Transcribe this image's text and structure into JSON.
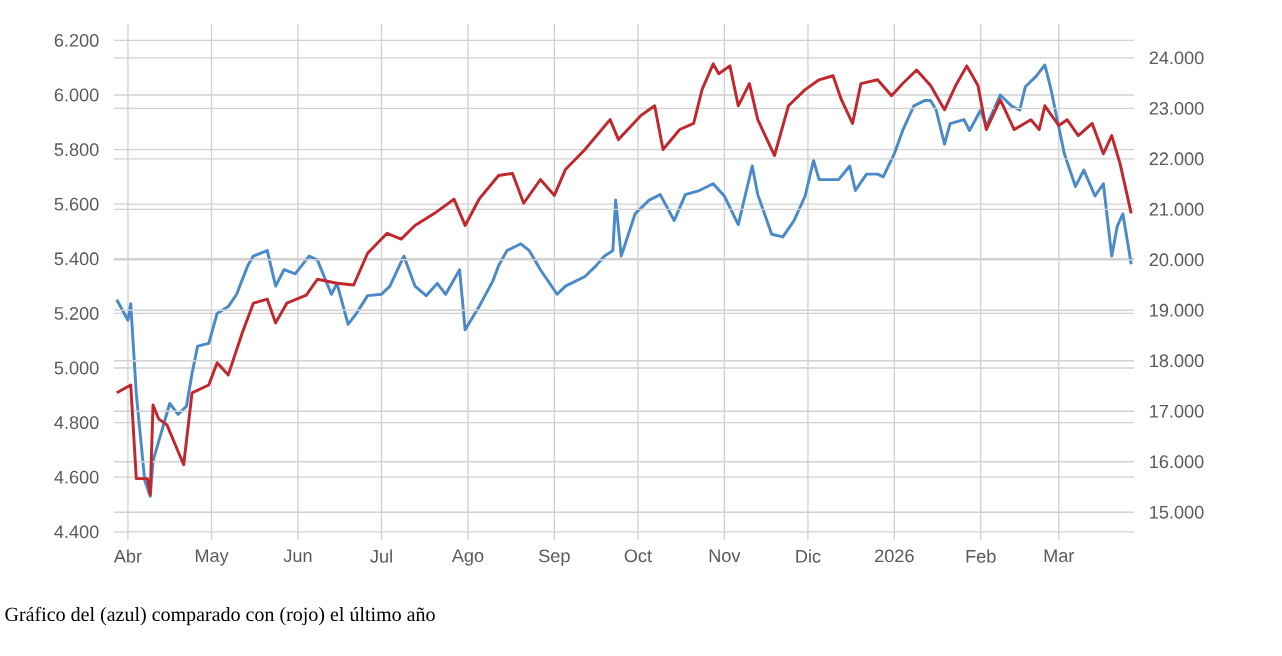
{
  "chart_data": {
    "type": "line",
    "xlim": [
      "2025-03-27",
      "2026-03-28"
    ],
    "xticks": [
      {
        "value": "2025-04-01",
        "label": "Abr"
      },
      {
        "value": "2025-05-01",
        "label": "May"
      },
      {
        "value": "2025-06-01",
        "label": "Jun"
      },
      {
        "value": "2025-07-01",
        "label": "Jul"
      },
      {
        "value": "2025-08-01",
        "label": "Ago"
      },
      {
        "value": "2025-09-01",
        "label": "Sep"
      },
      {
        "value": "2025-10-01",
        "label": "Oct"
      },
      {
        "value": "2025-11-01",
        "label": "Nov"
      },
      {
        "value": "2025-12-01",
        "label": "Dic"
      },
      {
        "value": "2026-01-01",
        "label": "2026"
      },
      {
        "value": "2026-02-01",
        "label": "Feb"
      },
      {
        "value": "2026-03-01",
        "label": "Mar"
      }
    ],
    "ylim": [
      4370,
      6260
    ],
    "yticks": [
      {
        "value": 4400,
        "label": "4.400"
      },
      {
        "value": 4600,
        "label": "4.600"
      },
      {
        "value": 4800,
        "label": "4.800"
      },
      {
        "value": 5000,
        "label": "5.000"
      },
      {
        "value": 5200,
        "label": "5.200"
      },
      {
        "value": 5400,
        "label": "5.400"
      },
      {
        "value": 5600,
        "label": "5.600"
      },
      {
        "value": 5800,
        "label": "5.800"
      },
      {
        "value": 6000,
        "label": "6.000"
      },
      {
        "value": 6200,
        "label": "6.200"
      }
    ],
    "y2lim": [
      14450,
      24670
    ],
    "y2ticks": [
      {
        "value": 15000,
        "label": "15.000"
      },
      {
        "value": 16000,
        "label": "16.000"
      },
      {
        "value": 17000,
        "label": "17.000"
      },
      {
        "value": 18000,
        "label": "18.000"
      },
      {
        "value": 19000,
        "label": "19.000"
      },
      {
        "value": 20000,
        "label": "20.000"
      },
      {
        "value": 21000,
        "label": "21.000"
      },
      {
        "value": 22000,
        "label": "22.000"
      },
      {
        "value": 23000,
        "label": "23.000"
      },
      {
        "value": 24000,
        "label": "24.000"
      }
    ],
    "grid": true,
    "series": [
      {
        "color": "#4a8ac8",
        "x": [
          "2025-03-28",
          "2025-04-01",
          "2025-04-02",
          "2025-04-04",
          "2025-04-07",
          "2025-04-09",
          "2025-04-10",
          "2025-04-16",
          "2025-04-19",
          "2025-04-22",
          "2025-04-24",
          "2025-04-26",
          "2025-04-30",
          "2025-05-03",
          "2025-05-07",
          "2025-05-10",
          "2025-05-14",
          "2025-05-16",
          "2025-05-21",
          "2025-05-24",
          "2025-05-27",
          "2025-05-31",
          "2025-06-05",
          "2025-06-08",
          "2025-06-13",
          "2025-06-15",
          "2025-06-19",
          "2025-06-22",
          "2025-06-26",
          "2025-07-01",
          "2025-07-04",
          "2025-07-09",
          "2025-07-13",
          "2025-07-17",
          "2025-07-21",
          "2025-07-24",
          "2025-07-29",
          "2025-07-31",
          "2025-08-05",
          "2025-08-10",
          "2025-08-12",
          "2025-08-15",
          "2025-08-20",
          "2025-08-23",
          "2025-08-27",
          "2025-09-02",
          "2025-09-05",
          "2025-09-12",
          "2025-09-16",
          "2025-09-19",
          "2025-09-22",
          "2025-09-23",
          "2025-09-25",
          "2025-09-30",
          "2025-10-05",
          "2025-10-09",
          "2025-10-14",
          "2025-10-18",
          "2025-10-23",
          "2025-10-28",
          "2025-11-01",
          "2025-11-06",
          "2025-11-11",
          "2025-11-13",
          "2025-11-18",
          "2025-11-22",
          "2025-11-26",
          "2025-11-30",
          "2025-12-03",
          "2025-12-05",
          "2025-12-12",
          "2025-12-16",
          "2025-12-18",
          "2025-12-22",
          "2025-12-26",
          "2025-12-28",
          "2026-01-01",
          "2026-01-04",
          "2026-01-08",
          "2026-01-12",
          "2026-01-14",
          "2026-01-16",
          "2026-01-19",
          "2026-01-21",
          "2026-01-26",
          "2026-01-28",
          "2026-02-01",
          "2026-02-03",
          "2026-02-08",
          "2026-02-12",
          "2026-02-15",
          "2026-02-17",
          "2026-02-21",
          "2026-02-24",
          "2026-02-26",
          "2026-03-03",
          "2026-03-07",
          "2026-03-10",
          "2026-03-14",
          "2026-03-17",
          "2026-03-20",
          "2026-03-22",
          "2026-03-24",
          "2026-03-27"
        ],
        "values": [
          5250,
          5175,
          5235,
          4905,
          4590,
          4530,
          4660,
          4870,
          4830,
          4860,
          4980,
          5080,
          5090,
          5200,
          5225,
          5270,
          5375,
          5410,
          5430,
          5300,
          5360,
          5345,
          5410,
          5395,
          5270,
          5310,
          5160,
          5200,
          5265,
          5270,
          5300,
          5410,
          5300,
          5265,
          5310,
          5270,
          5360,
          5140,
          5225,
          5320,
          5375,
          5430,
          5455,
          5430,
          5360,
          5270,
          5300,
          5335,
          5375,
          5410,
          5430,
          5615,
          5410,
          5565,
          5615,
          5635,
          5540,
          5635,
          5650,
          5675,
          5630,
          5525,
          5740,
          5635,
          5490,
          5480,
          5540,
          5630,
          5760,
          5690,
          5690,
          5740,
          5650,
          5710,
          5710,
          5700,
          5785,
          5870,
          5960,
          5980,
          5980,
          5945,
          5820,
          5895,
          5910,
          5870,
          5945,
          5885,
          6000,
          5960,
          5945,
          6030,
          6070,
          6110,
          6030,
          5785,
          5665,
          5725,
          5630,
          5675,
          5410,
          5520,
          5565,
          5380
        ]
      },
      {
        "color": "#c0282d",
        "axis": "y2",
        "x": [
          "2025-03-28",
          "2025-04-02",
          "2025-04-04",
          "2025-04-08",
          "2025-04-09",
          "2025-04-10",
          "2025-04-12",
          "2025-04-15",
          "2025-04-21",
          "2025-04-24",
          "2025-04-30",
          "2025-05-03",
          "2025-05-07",
          "2025-05-12",
          "2025-05-16",
          "2025-05-21",
          "2025-05-24",
          "2025-05-28",
          "2025-06-04",
          "2025-06-08",
          "2025-06-15",
          "2025-06-21",
          "2025-06-26",
          "2025-07-03",
          "2025-07-08",
          "2025-07-13",
          "2025-07-20",
          "2025-07-27",
          "2025-07-31",
          "2025-08-05",
          "2025-08-12",
          "2025-08-17",
          "2025-08-21",
          "2025-08-27",
          "2025-09-01",
          "2025-09-05",
          "2025-09-12",
          "2025-09-21",
          "2025-09-24",
          "2025-10-02",
          "2025-10-07",
          "2025-10-10",
          "2025-10-16",
          "2025-10-21",
          "2025-10-24",
          "2025-10-28",
          "2025-10-30",
          "2025-11-03",
          "2025-11-06",
          "2025-11-10",
          "2025-11-13",
          "2025-11-19",
          "2025-11-24",
          "2025-11-30",
          "2025-12-05",
          "2025-12-10",
          "2025-12-13",
          "2025-12-17",
          "2025-12-20",
          "2025-12-26",
          "2025-12-31",
          "2026-01-04",
          "2026-01-09",
          "2026-01-14",
          "2026-01-19",
          "2026-01-23",
          "2026-01-27",
          "2026-01-31",
          "2026-02-03",
          "2026-02-08",
          "2026-02-13",
          "2026-02-19",
          "2026-02-22",
          "2026-02-24",
          "2026-03-01",
          "2026-03-04",
          "2026-03-08",
          "2026-03-13",
          "2026-03-17",
          "2026-03-20",
          "2026-03-23",
          "2026-03-27"
        ],
        "values": [
          17365,
          17520,
          15665,
          15665,
          15350,
          17125,
          16850,
          16730,
          15940,
          17365,
          17520,
          17960,
          17720,
          18550,
          19140,
          19220,
          18750,
          19140,
          19300,
          19615,
          19535,
          19500,
          20130,
          20525,
          20410,
          20680,
          20920,
          21200,
          20680,
          21200,
          21670,
          21710,
          21120,
          21590,
          21275,
          21790,
          22185,
          22775,
          22380,
          22855,
          23050,
          22185,
          22580,
          22700,
          23370,
          23880,
          23685,
          23840,
          23050,
          23490,
          22775,
          22065,
          23050,
          23370,
          23565,
          23645,
          23170,
          22700,
          23490,
          23565,
          23250,
          23490,
          23760,
          23450,
          22970,
          23450,
          23840,
          23450,
          22580,
          23170,
          22580,
          22775,
          22580,
          23050,
          22660,
          22775,
          22460,
          22700,
          22100,
          22460,
          21905,
          20920
        ]
      }
    ],
    "annotations": [
      "Gráfico del (azul) comparado con (rojo) el último año"
    ]
  }
}
